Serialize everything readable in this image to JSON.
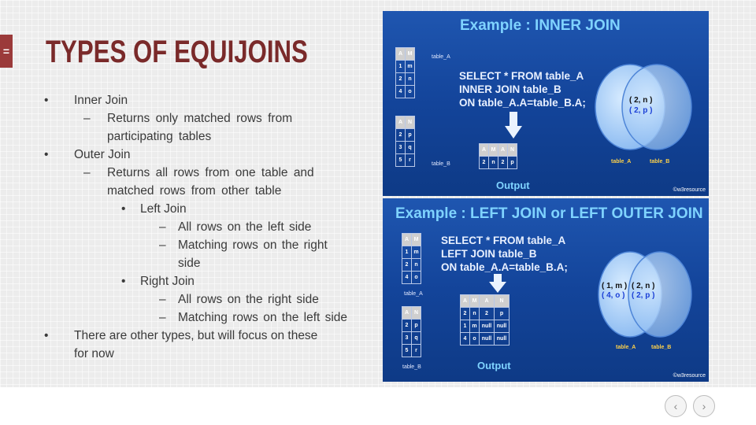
{
  "slide": {
    "title": "TYPES OF EQUIJOINS",
    "menu_glyph": "=",
    "bullets": [
      {
        "level": 1,
        "mark": "•",
        "text": "Inner Join"
      },
      {
        "level": 2,
        "mark": "–",
        "text": "Returns only matched rows from"
      },
      {
        "level": 2,
        "mark": "",
        "text": "participating tables"
      },
      {
        "level": 1,
        "mark": "•",
        "text": "Outer Join"
      },
      {
        "level": 2,
        "mark": "–",
        "text": "Returns all rows from one table and"
      },
      {
        "level": 2,
        "mark": "",
        "text": "matched rows from other table"
      },
      {
        "level": 3,
        "mark": "•",
        "text": "Left Join"
      },
      {
        "level": 4,
        "mark": "–",
        "text": "All rows on the left side"
      },
      {
        "level": 4,
        "mark": "–",
        "text": "Matching rows on the right"
      },
      {
        "level": 4,
        "mark": "",
        "text": "side"
      },
      {
        "level": 3,
        "mark": "•",
        "text": "Right Join"
      },
      {
        "level": 4,
        "mark": "–",
        "text": "All rows on the right side"
      },
      {
        "level": 4,
        "mark": "–",
        "text": "Matching rows on the left side"
      },
      {
        "level": 1,
        "mark": "•",
        "text": "There are other types, but will focus on these"
      },
      {
        "level": 1,
        "mark": "",
        "text": "for now"
      }
    ]
  },
  "inner_join": {
    "title": "Example : INNER JOIN",
    "sql": [
      "SELECT * FROM table_A",
      "INNER JOIN table_B",
      "ON table_A.A=table_B.A;"
    ],
    "table_a_label": "table_A",
    "table_b_label": "table_B",
    "table_a": [
      [
        "A",
        "M"
      ],
      [
        "1",
        "m"
      ],
      [
        "2",
        "n"
      ],
      [
        "4",
        "o"
      ]
    ],
    "table_b": [
      [
        "A",
        "N"
      ],
      [
        "2",
        "p"
      ],
      [
        "3",
        "q"
      ],
      [
        "5",
        "r"
      ]
    ],
    "output": [
      [
        "A",
        "M",
        "A",
        "N"
      ],
      [
        "2",
        "n",
        "2",
        "p"
      ]
    ],
    "output_label": "Output",
    "venn_left": "table_A",
    "venn_right": "table_B",
    "venn_pair1": "( 2, n )",
    "venn_pair2": "( 2, p )",
    "copyright": "©w3resource"
  },
  "left_join": {
    "title": "Example : LEFT JOIN or LEFT OUTER JOIN",
    "sql": [
      "SELECT * FROM table_A",
      "LEFT JOIN table_B",
      "ON table_A.A=table_B.A;"
    ],
    "table_a_label": "table_A",
    "table_b_label": "table_B",
    "table_a": [
      [
        "A",
        "M"
      ],
      [
        "1",
        "m"
      ],
      [
        "2",
        "n"
      ],
      [
        "4",
        "o"
      ]
    ],
    "table_b": [
      [
        "A",
        "N"
      ],
      [
        "2",
        "p"
      ],
      [
        "3",
        "q"
      ],
      [
        "5",
        "r"
      ]
    ],
    "output": [
      [
        "A",
        "M",
        "A",
        "N"
      ],
      [
        "2",
        "n",
        "2",
        "p"
      ],
      [
        "1",
        "m",
        "null",
        "null"
      ],
      [
        "4",
        "o",
        "null",
        "null"
      ]
    ],
    "output_label": "Output",
    "venn_left": "table_A",
    "venn_right": "table_B",
    "venn_a1": "( 1, m )",
    "venn_a2": "( 4, o )",
    "venn_b1": "( 2, n )",
    "venn_b2": "( 2, p )",
    "copyright": "©w3resource"
  },
  "nav": {
    "prev_icon": "‹",
    "next_icon": "›"
  }
}
